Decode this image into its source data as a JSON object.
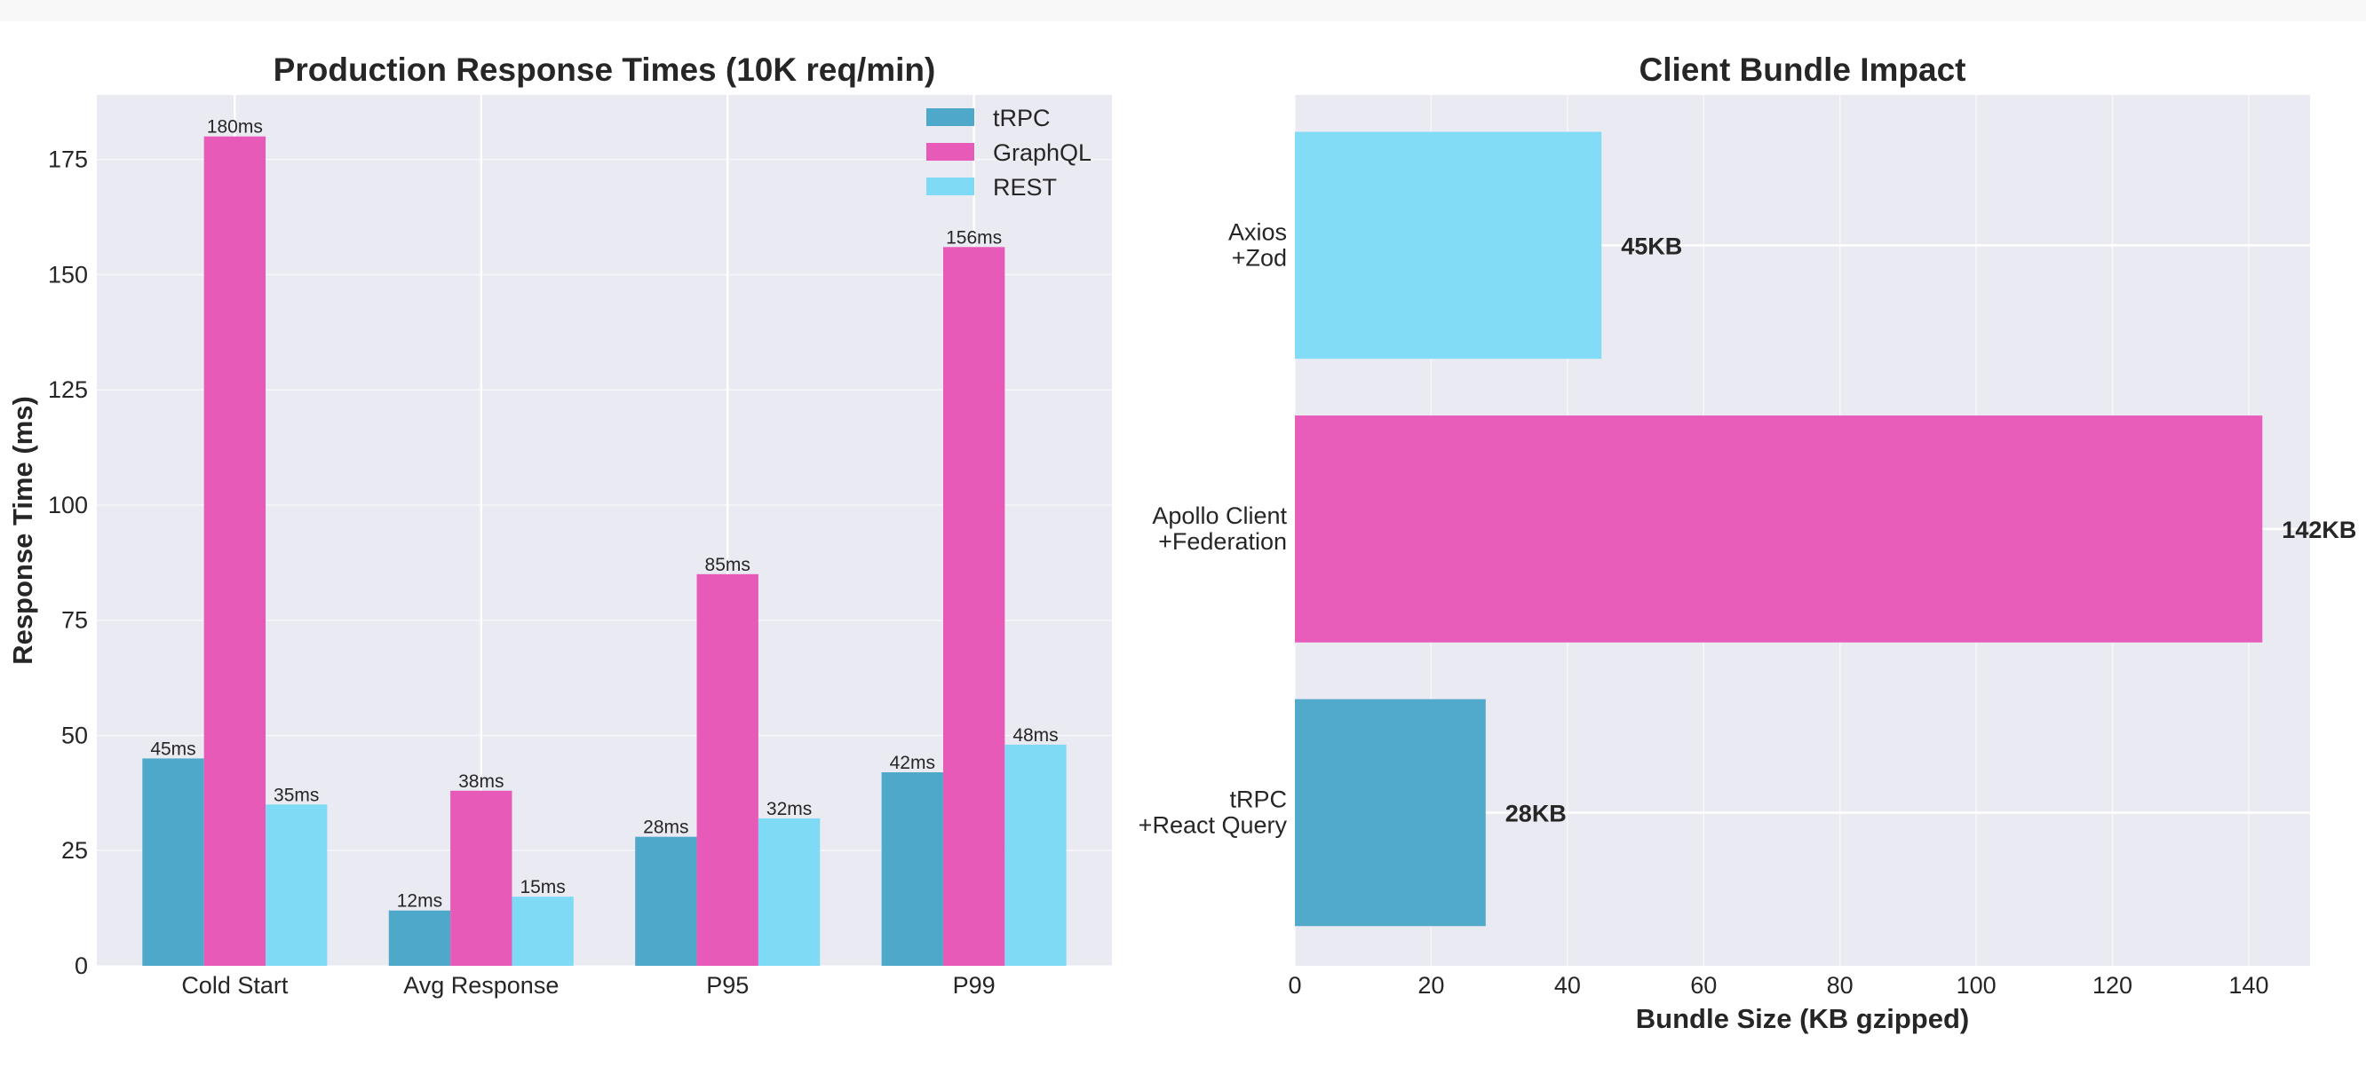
{
  "chart_data": [
    {
      "type": "bar",
      "title": "Production Response Times (10K req/min)",
      "xlabel": "",
      "ylabel": "Response Time (ms)",
      "categories": [
        "Cold Start",
        "Avg Response",
        "P95",
        "P99"
      ],
      "series": [
        {
          "name": "tRPC",
          "values": [
            45,
            12,
            28,
            42
          ],
          "labels": [
            "45ms",
            "12ms",
            "28ms",
            "42ms"
          ],
          "color": "#4ea8c9"
        },
        {
          "name": "GraphQL",
          "values": [
            180,
            38,
            85,
            156
          ],
          "labels": [
            "180ms",
            "38ms",
            "85ms",
            "156ms"
          ],
          "color": "#e75ab8"
        },
        {
          "name": "REST",
          "values": [
            35,
            15,
            32,
            48
          ],
          "labels": [
            "35ms",
            "15ms",
            "32ms",
            "48ms"
          ],
          "color": "#7fdbf5"
        }
      ],
      "ylim": [
        0,
        189
      ],
      "yticks": [
        "0",
        "25",
        "50",
        "75",
        "100",
        "125",
        "150",
        "175"
      ],
      "grid": true,
      "legend": "top-right"
    },
    {
      "type": "bar",
      "orientation": "horizontal",
      "title": "Client Bundle Impact",
      "xlabel": "Bundle Size (KB gzipped)",
      "ylabel": "",
      "categories": [
        [
          "tRPC",
          "+React Query"
        ],
        [
          "Apollo Client",
          "+Federation"
        ],
        [
          "Axios",
          "+Zod"
        ]
      ],
      "values": [
        28,
        142,
        45
      ],
      "labels": [
        "28KB",
        "142KB",
        "45KB"
      ],
      "colors": [
        "#4ea8c9",
        "#e75ab8",
        "#7fdbf5"
      ],
      "xlim": [
        0,
        149
      ],
      "xticks": [
        "0",
        "20",
        "40",
        "60",
        "80",
        "100",
        "120",
        "140"
      ],
      "grid": true
    }
  ]
}
